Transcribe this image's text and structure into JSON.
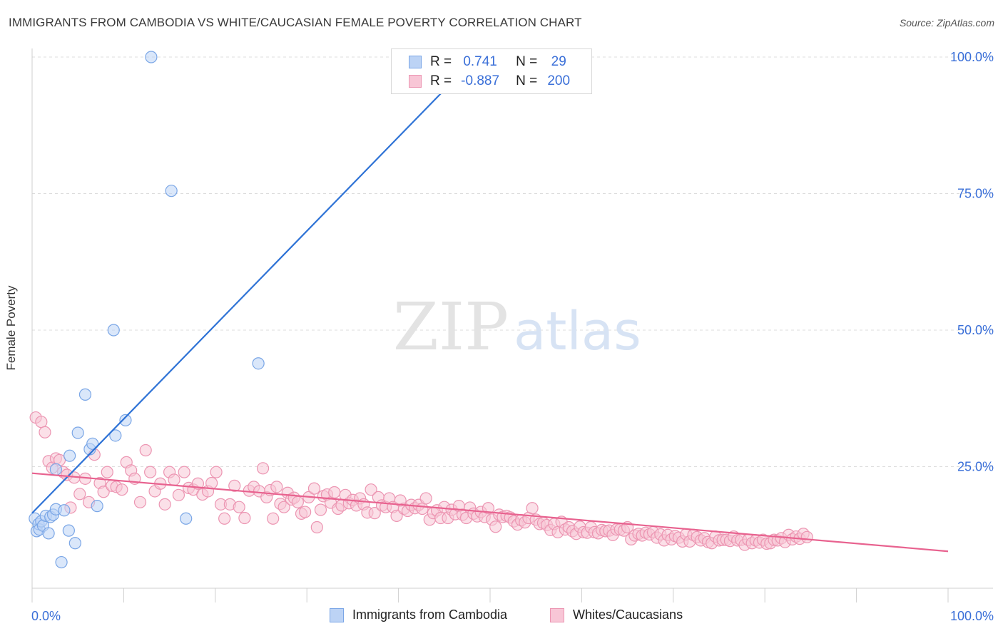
{
  "title": "IMMIGRANTS FROM CAMBODIA VS WHITE/CAUCASIAN FEMALE POVERTY CORRELATION CHART",
  "source": "Source: ZipAtlas.com",
  "watermark": {
    "zip": "ZIP",
    "atlas": "atlas"
  },
  "legend": {
    "rows": [
      {
        "r_label": "R =",
        "r_value": "0.741",
        "n_label": "N =",
        "n_value": "29"
      },
      {
        "r_label": "R =",
        "r_value": "-0.887",
        "n_label": "N =",
        "n_value": "200"
      }
    ]
  },
  "colors": {
    "blue_fill": "#bcd3f5",
    "blue_stroke": "#7aa6e6",
    "blue_line": "#2f73d6",
    "pink_fill": "#f8c6d6",
    "pink_stroke": "#ec95b2",
    "pink_line": "#e8628f",
    "tick_label": "#3a6fd8",
    "grid": "#dcdcdc"
  },
  "chart_data": {
    "type": "scatter",
    "title": "IMMIGRANTS FROM CAMBODIA VS WHITE/CAUCASIAN FEMALE POVERTY CORRELATION CHART",
    "xlabel": "",
    "ylabel": "Female Poverty",
    "xlim": [
      0,
      100
    ],
    "ylim": [
      0,
      100
    ],
    "x_tick_labels": [
      "0.0%",
      "100.0%"
    ],
    "y_tick_labels": [
      "25.0%",
      "50.0%",
      "75.0%",
      "100.0%"
    ],
    "y_ticks": [
      25,
      50,
      75,
      100
    ],
    "grid": true,
    "legend_position": "top-center",
    "series": [
      {
        "name": "Immigrants from Cambodia",
        "color": "#bcd3f5",
        "points": [
          [
            0.3,
            15.5
          ],
          [
            0.5,
            13.2
          ],
          [
            0.7,
            14.5
          ],
          [
            0.8,
            13.5
          ],
          [
            1.0,
            15.0
          ],
          [
            1.2,
            14.2
          ],
          [
            1.5,
            16.0
          ],
          [
            1.8,
            12.8
          ],
          [
            2.0,
            15.8
          ],
          [
            2.3,
            16.2
          ],
          [
            2.6,
            17.2
          ],
          [
            2.6,
            24.5
          ],
          [
            3.2,
            7.5
          ],
          [
            3.5,
            17.0
          ],
          [
            4.0,
            13.3
          ],
          [
            4.1,
            27.0
          ],
          [
            4.7,
            11.0
          ],
          [
            5.0,
            31.2
          ],
          [
            5.8,
            38.2
          ],
          [
            6.3,
            28.2
          ],
          [
            6.6,
            29.2
          ],
          [
            7.1,
            17.8
          ],
          [
            8.9,
            50.0
          ],
          [
            9.1,
            30.7
          ],
          [
            10.2,
            33.5
          ],
          [
            13.0,
            100.0
          ],
          [
            15.2,
            75.5
          ],
          [
            16.8,
            15.5
          ],
          [
            24.7,
            43.9
          ]
        ],
        "trend": {
          "x": [
            0,
            48.5
          ],
          "y": [
            16.5,
            100.0
          ]
        }
      },
      {
        "name": "Whites/Caucasians",
        "color": "#f8c6d6",
        "points": [
          [
            0.4,
            34.0
          ],
          [
            1.0,
            33.2
          ],
          [
            1.4,
            31.3
          ],
          [
            1.8,
            26.0
          ],
          [
            2.2,
            24.8
          ],
          [
            2.6,
            26.5
          ],
          [
            3.0,
            26.2
          ],
          [
            3.4,
            24.0
          ],
          [
            3.8,
            23.5
          ],
          [
            4.2,
            17.5
          ],
          [
            4.6,
            23.0
          ],
          [
            5.2,
            20.0
          ],
          [
            5.8,
            22.8
          ],
          [
            6.2,
            18.5
          ],
          [
            6.8,
            27.2
          ],
          [
            7.4,
            22.0
          ],
          [
            7.8,
            20.4
          ],
          [
            8.2,
            24.0
          ],
          [
            8.7,
            21.5
          ],
          [
            9.2,
            21.3
          ],
          [
            9.8,
            20.8
          ],
          [
            10.3,
            25.8
          ],
          [
            10.8,
            24.3
          ],
          [
            11.2,
            22.8
          ],
          [
            11.8,
            18.5
          ],
          [
            12.4,
            28.0
          ],
          [
            12.9,
            24.0
          ],
          [
            13.4,
            20.5
          ],
          [
            14.0,
            21.9
          ],
          [
            14.5,
            18.1
          ],
          [
            15.0,
            24.0
          ],
          [
            15.5,
            22.6
          ],
          [
            16.0,
            19.8
          ],
          [
            16.6,
            24.0
          ],
          [
            17.1,
            21.1
          ],
          [
            17.6,
            20.8
          ],
          [
            18.1,
            21.9
          ],
          [
            18.6,
            19.9
          ],
          [
            19.2,
            20.5
          ],
          [
            19.6,
            22.0
          ],
          [
            20.1,
            24.0
          ],
          [
            20.6,
            18.1
          ],
          [
            21.0,
            15.5
          ],
          [
            21.6,
            18.1
          ],
          [
            22.1,
            21.5
          ],
          [
            22.6,
            17.6
          ],
          [
            23.2,
            15.6
          ],
          [
            23.7,
            20.6
          ],
          [
            24.2,
            21.3
          ],
          [
            24.8,
            20.5
          ],
          [
            25.2,
            24.7
          ],
          [
            25.6,
            19.4
          ],
          [
            26.0,
            20.7
          ],
          [
            26.3,
            15.5
          ],
          [
            26.7,
            21.3
          ],
          [
            27.1,
            18.2
          ],
          [
            27.5,
            17.6
          ],
          [
            27.9,
            20.2
          ],
          [
            28.3,
            19.0
          ],
          [
            28.6,
            19.3
          ],
          [
            29.0,
            18.5
          ],
          [
            29.4,
            16.4
          ],
          [
            29.8,
            16.7
          ],
          [
            30.2,
            19.4
          ],
          [
            30.8,
            21.0
          ],
          [
            31.1,
            13.9
          ],
          [
            31.5,
            17.1
          ],
          [
            31.8,
            19.6
          ],
          [
            32.2,
            19.9
          ],
          [
            32.6,
            18.4
          ],
          [
            33.0,
            20.3
          ],
          [
            33.4,
            17.3
          ],
          [
            33.8,
            17.9
          ],
          [
            34.2,
            19.8
          ],
          [
            34.6,
            18.3
          ],
          [
            35.0,
            18.9
          ],
          [
            35.4,
            17.9
          ],
          [
            35.8,
            19.2
          ],
          [
            36.2,
            18.1
          ],
          [
            36.6,
            16.6
          ],
          [
            37.0,
            20.8
          ],
          [
            37.4,
            16.5
          ],
          [
            37.8,
            19.4
          ],
          [
            38.2,
            17.9
          ],
          [
            38.6,
            17.6
          ],
          [
            39.0,
            19.2
          ],
          [
            39.4,
            17.6
          ],
          [
            39.8,
            16.0
          ],
          [
            40.2,
            18.8
          ],
          [
            40.6,
            17.3
          ],
          [
            41.0,
            16.9
          ],
          [
            41.4,
            18.0
          ],
          [
            41.8,
            17.4
          ],
          [
            42.2,
            18.0
          ],
          [
            42.6,
            17.3
          ],
          [
            43.0,
            19.2
          ],
          [
            43.4,
            15.3
          ],
          [
            43.8,
            16.5
          ],
          [
            44.2,
            17.0
          ],
          [
            44.6,
            15.6
          ],
          [
            45.0,
            17.6
          ],
          [
            45.4,
            15.6
          ],
          [
            45.8,
            17.1
          ],
          [
            46.2,
            16.3
          ],
          [
            46.6,
            17.8
          ],
          [
            47.0,
            16.2
          ],
          [
            47.4,
            15.6
          ],
          [
            47.8,
            17.5
          ],
          [
            48.2,
            16.4
          ],
          [
            48.6,
            15.9
          ],
          [
            49.0,
            16.7
          ],
          [
            49.4,
            15.8
          ],
          [
            49.8,
            17.4
          ],
          [
            50.2,
            15.3
          ],
          [
            50.6,
            14.0
          ],
          [
            51.0,
            16.2
          ],
          [
            51.4,
            15.8
          ],
          [
            51.8,
            16.0
          ],
          [
            52.2,
            15.7
          ],
          [
            52.6,
            15.0
          ],
          [
            53.0,
            14.4
          ],
          [
            53.4,
            15.2
          ],
          [
            53.8,
            14.8
          ],
          [
            54.2,
            15.6
          ],
          [
            54.6,
            17.4
          ],
          [
            55.0,
            15.3
          ],
          [
            55.4,
            14.5
          ],
          [
            55.8,
            14.7
          ],
          [
            56.2,
            14.3
          ],
          [
            56.6,
            13.4
          ],
          [
            57.0,
            14.5
          ],
          [
            57.4,
            13.0
          ],
          [
            57.8,
            14.9
          ],
          [
            58.2,
            13.5
          ],
          [
            58.6,
            13.9
          ],
          [
            59.0,
            13.2
          ],
          [
            59.4,
            12.7
          ],
          [
            59.8,
            14.0
          ],
          [
            60.2,
            13.0
          ],
          [
            60.6,
            12.9
          ],
          [
            61.0,
            13.9
          ],
          [
            61.4,
            13.0
          ],
          [
            61.8,
            12.8
          ],
          [
            62.2,
            13.4
          ],
          [
            62.6,
            13.2
          ],
          [
            63.0,
            13.3
          ],
          [
            63.4,
            12.5
          ],
          [
            63.8,
            13.5
          ],
          [
            64.2,
            13.5
          ],
          [
            64.6,
            13.3
          ],
          [
            65.0,
            13.9
          ],
          [
            65.4,
            11.7
          ],
          [
            65.8,
            12.4
          ],
          [
            66.2,
            12.7
          ],
          [
            66.6,
            12.4
          ],
          [
            67.0,
            12.9
          ],
          [
            67.4,
            12.6
          ],
          [
            67.8,
            13.0
          ],
          [
            68.2,
            12.0
          ],
          [
            68.6,
            12.6
          ],
          [
            69.0,
            11.5
          ],
          [
            69.4,
            12.5
          ],
          [
            69.8,
            11.7
          ],
          [
            70.2,
            12.3
          ],
          [
            70.6,
            12.0
          ],
          [
            71.0,
            11.3
          ],
          [
            71.4,
            12.6
          ],
          [
            71.8,
            11.3
          ],
          [
            72.2,
            12.5
          ],
          [
            72.6,
            12.1
          ],
          [
            73.0,
            11.5
          ],
          [
            73.4,
            11.9
          ],
          [
            73.8,
            11.2
          ],
          [
            74.2,
            11.0
          ],
          [
            74.6,
            12.2
          ],
          [
            75.0,
            11.5
          ],
          [
            75.4,
            11.6
          ],
          [
            75.8,
            11.6
          ],
          [
            76.2,
            11.4
          ],
          [
            76.6,
            12.2
          ],
          [
            77.0,
            11.5
          ],
          [
            77.4,
            11.6
          ],
          [
            77.8,
            10.7
          ],
          [
            78.2,
            11.6
          ],
          [
            78.6,
            11.0
          ],
          [
            79.0,
            11.5
          ],
          [
            79.4,
            11.1
          ],
          [
            79.8,
            11.6
          ],
          [
            80.2,
            10.9
          ],
          [
            80.6,
            11.0
          ],
          [
            81.0,
            11.6
          ],
          [
            81.4,
            11.5
          ],
          [
            81.8,
            11.9
          ],
          [
            82.2,
            11.2
          ],
          [
            82.6,
            12.5
          ],
          [
            83.0,
            11.7
          ],
          [
            83.4,
            12.2
          ],
          [
            83.8,
            11.8
          ],
          [
            84.2,
            12.7
          ],
          [
            84.6,
            12.1
          ]
        ],
        "trend": {
          "x": [
            0,
            100
          ],
          "y": [
            23.8,
            9.5
          ]
        }
      }
    ]
  },
  "bottom_legend": [
    {
      "label": "Immigrants from Cambodia"
    },
    {
      "label": "Whites/Caucasians"
    }
  ]
}
